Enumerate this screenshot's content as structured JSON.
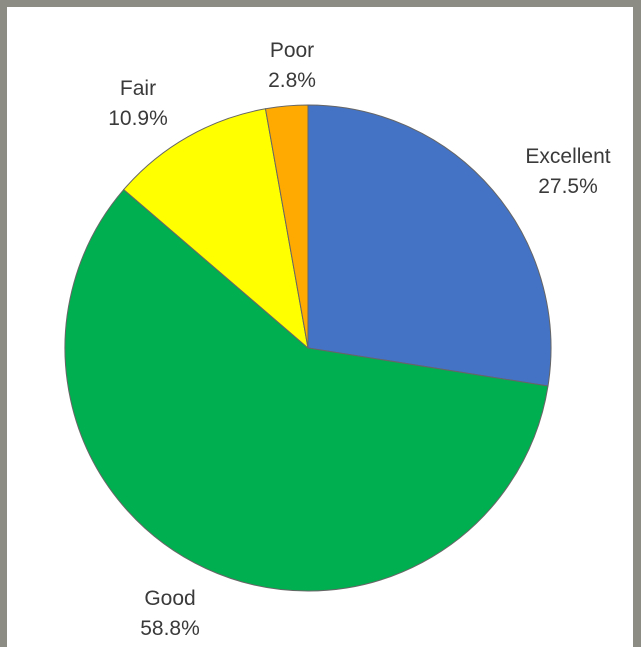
{
  "chart_data": {
    "type": "pie",
    "categories": [
      "Excellent",
      "Good",
      "Fair",
      "Poor"
    ],
    "values": [
      27.5,
      58.8,
      10.9,
      2.8
    ],
    "percent_labels": [
      "27.5%",
      "58.8%",
      "10.9%",
      "2.8%"
    ],
    "colors": [
      "#4472C4",
      "#00B050",
      "#FFFF00",
      "#FFAA00"
    ],
    "start": "12 o'clock",
    "direction": "clockwise",
    "legend": "none",
    "title": ""
  }
}
